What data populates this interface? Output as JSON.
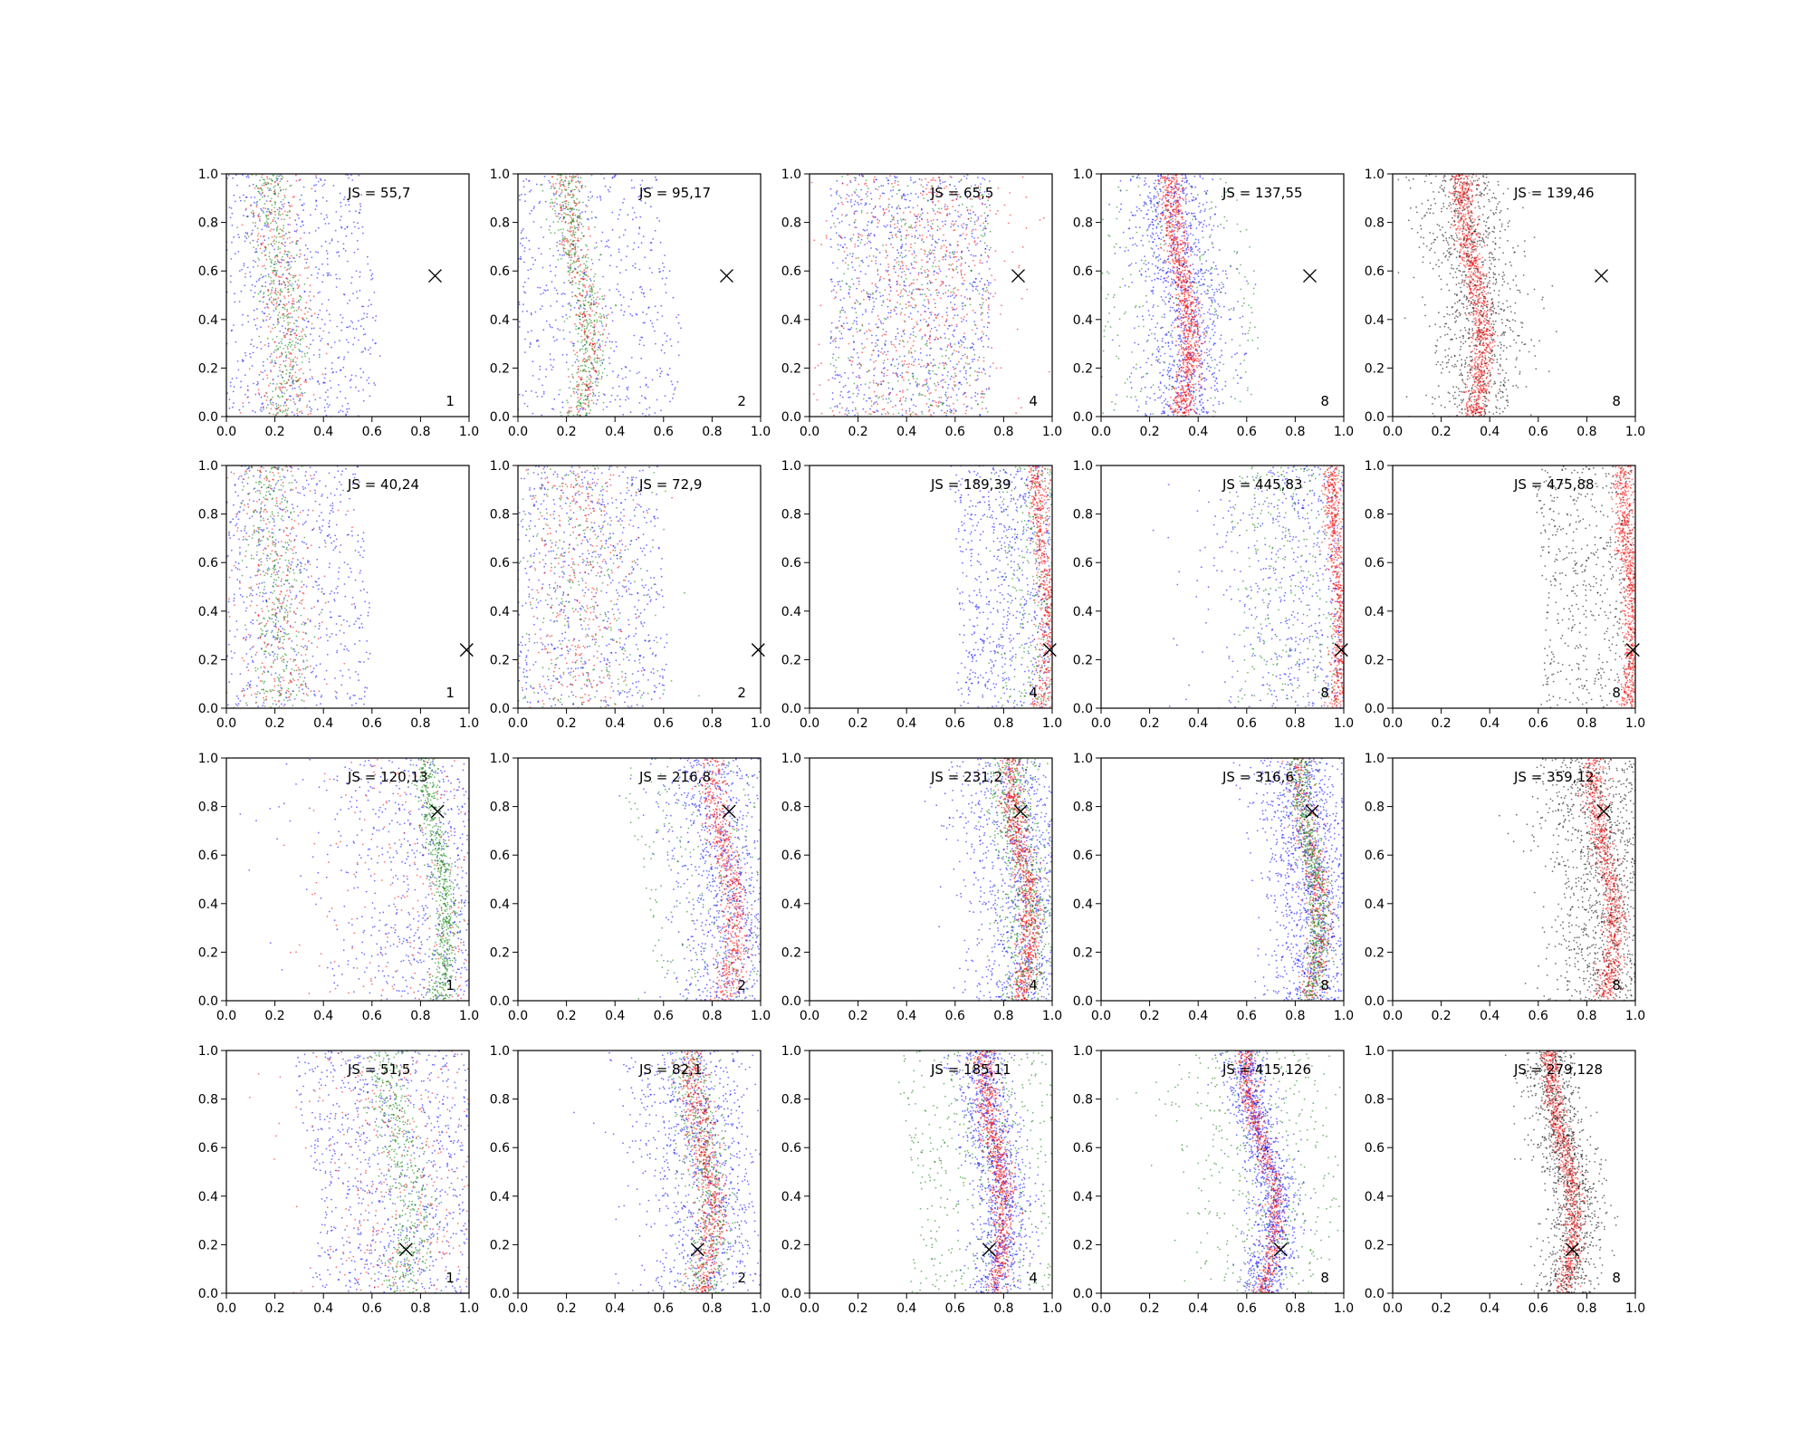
{
  "figure": {
    "rows": 4,
    "cols": 5
  },
  "chart_data": [
    {
      "type": "scatter",
      "row": 0,
      "col": 0,
      "title": "JS = 55,7",
      "corner_label": "1",
      "marker": [
        0.86,
        0.58
      ],
      "xlim": [
        0,
        1
      ],
      "ylim": [
        0,
        1
      ],
      "xticks": [
        "0.0",
        "0.2",
        "0.4",
        "0.6",
        "0.8",
        "1.0"
      ],
      "yticks": [
        "0.0",
        "0.2",
        "0.4",
        "0.6",
        "0.8",
        "1.0"
      ],
      "series": [
        {
          "color": "#0000ff",
          "spread": 0.38,
          "count": 900
        },
        {
          "color": "#008000",
          "spread": 0.045,
          "count": 420
        },
        {
          "color": "#ff0000",
          "spread": 0.06,
          "count": 320
        }
      ],
      "curve": {
        "center": 0.22,
        "amp": 0.04,
        "phase": 0.0
      }
    },
    {
      "type": "scatter",
      "row": 0,
      "col": 1,
      "title": "JS = 95,17",
      "corner_label": "2",
      "marker": [
        0.86,
        0.58
      ],
      "xlim": [
        0,
        1
      ],
      "ylim": [
        0,
        1
      ],
      "xticks": [
        "0.0",
        "0.2",
        "0.4",
        "0.6",
        "0.8",
        "1.0"
      ],
      "yticks": [
        "0.0",
        "0.2",
        "0.4",
        "0.6",
        "0.8",
        "1.0"
      ],
      "series": [
        {
          "color": "#0000ff",
          "spread": 0.38,
          "count": 700
        },
        {
          "color": "#008000",
          "spread": 0.04,
          "count": 520
        },
        {
          "color": "#ff0000",
          "spread": 0.03,
          "count": 320
        }
      ],
      "curve": {
        "center": 0.25,
        "amp": 0.05,
        "phase": 0.0
      }
    },
    {
      "type": "scatter",
      "row": 0,
      "col": 2,
      "title": "JS = 65,5",
      "corner_label": "4",
      "marker": [
        0.86,
        0.58
      ],
      "xlim": [
        0,
        1
      ],
      "ylim": [
        0,
        1
      ],
      "xticks": [
        "0.0",
        "0.2",
        "0.4",
        "0.6",
        "0.8",
        "1.0"
      ],
      "yticks": [
        "0.0",
        "0.2",
        "0.4",
        "0.6",
        "0.8",
        "1.0"
      ],
      "series": [
        {
          "color": "#0000ff",
          "spread": 0.3,
          "count": 900
        },
        {
          "color": "#ff0000",
          "spread": 0.2,
          "count": 650
        },
        {
          "color": "#008000",
          "spread": 0.3,
          "count": 350
        }
      ],
      "curve": {
        "center": 0.45,
        "amp": 0.0,
        "phase": 0.0
      }
    },
    {
      "type": "scatter",
      "row": 0,
      "col": 3,
      "title": "JS = 137,55",
      "corner_label": "8",
      "marker": [
        0.86,
        0.58
      ],
      "xlim": [
        0,
        1
      ],
      "ylim": [
        0,
        1
      ],
      "xticks": [
        "0.0",
        "0.2",
        "0.4",
        "0.6",
        "0.8",
        "1.0"
      ],
      "yticks": [
        "0.0",
        "0.2",
        "0.4",
        "0.6",
        "0.8",
        "1.0"
      ],
      "series": [
        {
          "color": "#0000ff",
          "spread": 0.1,
          "count": 1100
        },
        {
          "color": "#008000",
          "spread": 0.3,
          "count": 250
        },
        {
          "color": "#ff0000",
          "spread": 0.025,
          "count": 1000
        }
      ],
      "curve": {
        "center": 0.33,
        "amp": 0.04,
        "phase": 0.0
      }
    },
    {
      "type": "scatter",
      "row": 0,
      "col": 4,
      "title": "JS = 139,46",
      "corner_label": "8",
      "marker": [
        0.86,
        0.58
      ],
      "xlim": [
        0,
        1
      ],
      "ylim": [
        0,
        1
      ],
      "xticks": [
        "0.0",
        "0.2",
        "0.4",
        "0.6",
        "0.8",
        "1.0"
      ],
      "yticks": [
        "0.0",
        "0.2",
        "0.4",
        "0.6",
        "0.8",
        "1.0"
      ],
      "series": [
        {
          "color": "#000000",
          "spread": 0.1,
          "count": 1000
        },
        {
          "color": "#ff0000",
          "spread": 0.025,
          "count": 1000
        }
      ],
      "curve": {
        "center": 0.33,
        "amp": 0.04,
        "phase": 0.0
      }
    },
    {
      "type": "scatter",
      "row": 1,
      "col": 0,
      "title": "JS = 40,24",
      "corner_label": "1",
      "marker": [
        0.99,
        0.24
      ],
      "xlim": [
        0,
        1
      ],
      "ylim": [
        0,
        1
      ],
      "xticks": [
        "0.0",
        "0.2",
        "0.4",
        "0.6",
        "0.8",
        "1.0"
      ],
      "yticks": [
        "0.0",
        "0.2",
        "0.4",
        "0.6",
        "0.8",
        "1.0"
      ],
      "series": [
        {
          "color": "#0000ff",
          "spread": 0.38,
          "count": 900
        },
        {
          "color": "#008000",
          "spread": 0.06,
          "count": 400
        },
        {
          "color": "#ff0000",
          "spread": 0.1,
          "count": 300
        }
      ],
      "curve": {
        "center": 0.2,
        "amp": 0.02,
        "phase": 0.0
      }
    },
    {
      "type": "scatter",
      "row": 1,
      "col": 1,
      "title": "JS = 72,9",
      "corner_label": "2",
      "marker": [
        0.99,
        0.24
      ],
      "xlim": [
        0,
        1
      ],
      "ylim": [
        0,
        1
      ],
      "xticks": [
        "0.0",
        "0.2",
        "0.4",
        "0.6",
        "0.8",
        "1.0"
      ],
      "yticks": [
        "0.0",
        "0.2",
        "0.4",
        "0.6",
        "0.8",
        "1.0"
      ],
      "series": [
        {
          "color": "#0000ff",
          "spread": 0.35,
          "count": 900
        },
        {
          "color": "#008000",
          "spread": 0.15,
          "count": 300
        },
        {
          "color": "#ff0000",
          "spread": 0.12,
          "count": 350
        }
      ],
      "curve": {
        "center": 0.25,
        "amp": 0.02,
        "phase": 0.0
      }
    },
    {
      "type": "scatter",
      "row": 1,
      "col": 2,
      "title": "JS = 189,39",
      "corner_label": "4",
      "marker": [
        0.99,
        0.24
      ],
      "xlim": [
        0,
        1
      ],
      "ylim": [
        0,
        1
      ],
      "xticks": [
        "0.0",
        "0.2",
        "0.4",
        "0.6",
        "0.8",
        "1.0"
      ],
      "yticks": [
        "0.0",
        "0.2",
        "0.4",
        "0.6",
        "0.8",
        "1.0"
      ],
      "series": [
        {
          "color": "#0000ff",
          "spread": 0.3,
          "count": 1100
        },
        {
          "color": "#008000",
          "spread": 0.1,
          "count": 400
        },
        {
          "color": "#ff0000",
          "spread": 0.02,
          "count": 600
        }
      ],
      "curve": {
        "center": 0.96,
        "amp": 0.02,
        "phase": 0.0
      }
    },
    {
      "type": "scatter",
      "row": 1,
      "col": 3,
      "title": "JS = 445,83",
      "corner_label": "8",
      "marker": [
        0.99,
        0.24
      ],
      "xlim": [
        0,
        1
      ],
      "ylim": [
        0,
        1
      ],
      "xticks": [
        "0.0",
        "0.2",
        "0.4",
        "0.6",
        "0.8",
        "1.0"
      ],
      "yticks": [
        "0.0",
        "0.2",
        "0.4",
        "0.6",
        "0.8",
        "1.0"
      ],
      "series": [
        {
          "color": "#0000ff",
          "spread": 0.25,
          "count": 1000
        },
        {
          "color": "#008000",
          "spread": 0.35,
          "count": 450
        },
        {
          "color": "#ff0000",
          "spread": 0.02,
          "count": 700
        }
      ],
      "curve": {
        "center": 0.97,
        "amp": 0.02,
        "phase": 0.0
      }
    },
    {
      "type": "scatter",
      "row": 1,
      "col": 4,
      "title": "JS = 475,88",
      "corner_label": "8",
      "marker": [
        0.99,
        0.24
      ],
      "xlim": [
        0,
        1
      ],
      "ylim": [
        0,
        1
      ],
      "xticks": [
        "0.0",
        "0.2",
        "0.4",
        "0.6",
        "0.8",
        "1.0"
      ],
      "yticks": [
        "0.0",
        "0.2",
        "0.4",
        "0.6",
        "0.8",
        "1.0"
      ],
      "series": [
        {
          "color": "#000000",
          "spread": 0.3,
          "count": 900
        },
        {
          "color": "#ff0000",
          "spread": 0.02,
          "count": 800
        }
      ],
      "curve": {
        "center": 0.97,
        "amp": 0.02,
        "phase": 0.0
      }
    },
    {
      "type": "scatter",
      "row": 2,
      "col": 0,
      "title": "JS = 120,13",
      "corner_label": "1",
      "marker": [
        0.87,
        0.78
      ],
      "xlim": [
        0,
        1
      ],
      "ylim": [
        0,
        1
      ],
      "xticks": [
        "0.0",
        "0.2",
        "0.4",
        "0.6",
        "0.8",
        "1.0"
      ],
      "yticks": [
        "0.0",
        "0.2",
        "0.4",
        "0.6",
        "0.8",
        "1.0"
      ],
      "series": [
        {
          "color": "#0000ff",
          "spread": 0.25,
          "count": 900
        },
        {
          "color": "#ff0000",
          "spread": 0.25,
          "count": 300
        },
        {
          "color": "#008000",
          "spread": 0.025,
          "count": 650
        }
      ],
      "curve": {
        "center": 0.87,
        "amp": 0.04,
        "phase": 0.0
      }
    },
    {
      "type": "scatter",
      "row": 2,
      "col": 1,
      "title": "JS = 216,8",
      "corner_label": "2",
      "marker": [
        0.87,
        0.78
      ],
      "xlim": [
        0,
        1
      ],
      "ylim": [
        0,
        1
      ],
      "xticks": [
        "0.0",
        "0.2",
        "0.4",
        "0.6",
        "0.8",
        "1.0"
      ],
      "yticks": [
        "0.0",
        "0.2",
        "0.4",
        "0.6",
        "0.8",
        "1.0"
      ],
      "series": [
        {
          "color": "#0000ff",
          "spread": 0.12,
          "count": 1000
        },
        {
          "color": "#008000",
          "spread": 0.3,
          "count": 300
        },
        {
          "color": "#ff0000",
          "spread": 0.03,
          "count": 650
        }
      ],
      "curve": {
        "center": 0.85,
        "amp": 0.05,
        "phase": 0.0
      }
    },
    {
      "type": "scatter",
      "row": 2,
      "col": 2,
      "title": "JS = 231,2",
      "corner_label": "4",
      "marker": [
        0.87,
        0.78
      ],
      "xlim": [
        0,
        1
      ],
      "ylim": [
        0,
        1
      ],
      "xticks": [
        "0.0",
        "0.2",
        "0.4",
        "0.6",
        "0.8",
        "1.0"
      ],
      "yticks": [
        "0.0",
        "0.2",
        "0.4",
        "0.6",
        "0.8",
        "1.0"
      ],
      "series": [
        {
          "color": "#0000ff",
          "spread": 0.14,
          "count": 1100
        },
        {
          "color": "#008000",
          "spread": 0.06,
          "count": 700
        },
        {
          "color": "#ff0000",
          "spread": 0.025,
          "count": 800
        }
      ],
      "curve": {
        "center": 0.87,
        "amp": 0.04,
        "phase": 0.0
      }
    },
    {
      "type": "scatter",
      "row": 2,
      "col": 3,
      "title": "JS = 316,6",
      "corner_label": "8",
      "marker": [
        0.87,
        0.78
      ],
      "xlim": [
        0,
        1
      ],
      "ylim": [
        0,
        1
      ],
      "xticks": [
        "0.0",
        "0.2",
        "0.4",
        "0.6",
        "0.8",
        "1.0"
      ],
      "yticks": [
        "0.0",
        "0.2",
        "0.4",
        "0.6",
        "0.8",
        "1.0"
      ],
      "series": [
        {
          "color": "#0000ff",
          "spread": 0.1,
          "count": 1300
        },
        {
          "color": "#ff0000",
          "spread": 0.03,
          "count": 500
        },
        {
          "color": "#008000",
          "spread": 0.025,
          "count": 650
        }
      ],
      "curve": {
        "center": 0.86,
        "amp": 0.04,
        "phase": 0.0
      }
    },
    {
      "type": "scatter",
      "row": 2,
      "col": 4,
      "title": "JS = 359,12",
      "corner_label": "8",
      "marker": [
        0.87,
        0.78
      ],
      "xlim": [
        0,
        1
      ],
      "ylim": [
        0,
        1
      ],
      "xticks": [
        "0.0",
        "0.2",
        "0.4",
        "0.6",
        "0.8",
        "1.0"
      ],
      "yticks": [
        "0.0",
        "0.2",
        "0.4",
        "0.6",
        "0.8",
        "1.0"
      ],
      "series": [
        {
          "color": "#000000",
          "spread": 0.12,
          "count": 1300
        },
        {
          "color": "#ff0000",
          "spread": 0.025,
          "count": 800
        }
      ],
      "curve": {
        "center": 0.87,
        "amp": 0.04,
        "phase": 0.0
      }
    },
    {
      "type": "scatter",
      "row": 3,
      "col": 0,
      "title": "JS = 51,5",
      "corner_label": "1",
      "marker": [
        0.74,
        0.18
      ],
      "xlim": [
        0,
        1
      ],
      "ylim": [
        0,
        1
      ],
      "xticks": [
        "0.0",
        "0.2",
        "0.4",
        "0.6",
        "0.8",
        "1.0"
      ],
      "yticks": [
        "0.0",
        "0.2",
        "0.4",
        "0.6",
        "0.8",
        "1.0"
      ],
      "series": [
        {
          "color": "#0000ff",
          "spread": 0.32,
          "count": 900
        },
        {
          "color": "#ff0000",
          "spread": 0.2,
          "count": 350
        },
        {
          "color": "#008000",
          "spread": 0.05,
          "count": 500
        }
      ],
      "curve": {
        "center": 0.72,
        "amp": 0.05,
        "phase": 0.0
      }
    },
    {
      "type": "scatter",
      "row": 3,
      "col": 1,
      "title": "JS = 82,1",
      "corner_label": "2",
      "marker": [
        0.74,
        0.18
      ],
      "xlim": [
        0,
        1
      ],
      "ylim": [
        0,
        1
      ],
      "xticks": [
        "0.0",
        "0.2",
        "0.4",
        "0.6",
        "0.8",
        "1.0"
      ],
      "yticks": [
        "0.0",
        "0.2",
        "0.4",
        "0.6",
        "0.8",
        "1.0"
      ],
      "series": [
        {
          "color": "#0000ff",
          "spread": 0.14,
          "count": 1000
        },
        {
          "color": "#008000",
          "spread": 0.05,
          "count": 500
        },
        {
          "color": "#ff0000",
          "spread": 0.03,
          "count": 700
        }
      ],
      "curve": {
        "center": 0.76,
        "amp": 0.04,
        "phase": 0.0
      }
    },
    {
      "type": "scatter",
      "row": 3,
      "col": 2,
      "title": "JS = 185,11",
      "corner_label": "4",
      "marker": [
        0.74,
        0.18
      ],
      "xlim": [
        0,
        1
      ],
      "ylim": [
        0,
        1
      ],
      "xticks": [
        "0.0",
        "0.2",
        "0.4",
        "0.6",
        "0.8",
        "1.0"
      ],
      "yticks": [
        "0.0",
        "0.2",
        "0.4",
        "0.6",
        "0.8",
        "1.0"
      ],
      "series": [
        {
          "color": "#0000ff",
          "spread": 0.06,
          "count": 1100
        },
        {
          "color": "#008000",
          "spread": 0.3,
          "count": 500
        },
        {
          "color": "#ff0000",
          "spread": 0.025,
          "count": 800
        }
      ],
      "curve": {
        "center": 0.76,
        "amp": 0.04,
        "phase": 0.0
      }
    },
    {
      "type": "scatter",
      "row": 3,
      "col": 3,
      "title": "JS = 415,126",
      "corner_label": "8",
      "marker": [
        0.74,
        0.18
      ],
      "xlim": [
        0,
        1
      ],
      "ylim": [
        0,
        1
      ],
      "xticks": [
        "0.0",
        "0.2",
        "0.4",
        "0.6",
        "0.8",
        "1.0"
      ],
      "yticks": [
        "0.0",
        "0.2",
        "0.4",
        "0.6",
        "0.8",
        "1.0"
      ],
      "series": [
        {
          "color": "#0000ff",
          "spread": 0.05,
          "count": 1200
        },
        {
          "color": "#008000",
          "spread": 0.2,
          "count": 450
        },
        {
          "color": "#ff0000",
          "spread": 0.02,
          "count": 650
        }
      ],
      "curve": {
        "center": 0.66,
        "amp": 0.06,
        "phase": 0.0
      }
    },
    {
      "type": "scatter",
      "row": 3,
      "col": 4,
      "title": "JS = 279,128",
      "corner_label": "8",
      "marker": [
        0.74,
        0.18
      ],
      "xlim": [
        0,
        1
      ],
      "ylim": [
        0,
        1
      ],
      "xticks": [
        "0.0",
        "0.2",
        "0.4",
        "0.6",
        "0.8",
        "1.0"
      ],
      "yticks": [
        "0.0",
        "0.2",
        "0.4",
        "0.6",
        "0.8",
        "1.0"
      ],
      "series": [
        {
          "color": "#000000",
          "spread": 0.06,
          "count": 1200
        },
        {
          "color": "#ff0000",
          "spread": 0.02,
          "count": 800
        }
      ],
      "curve": {
        "center": 0.7,
        "amp": 0.05,
        "phase": 0.0
      }
    }
  ]
}
